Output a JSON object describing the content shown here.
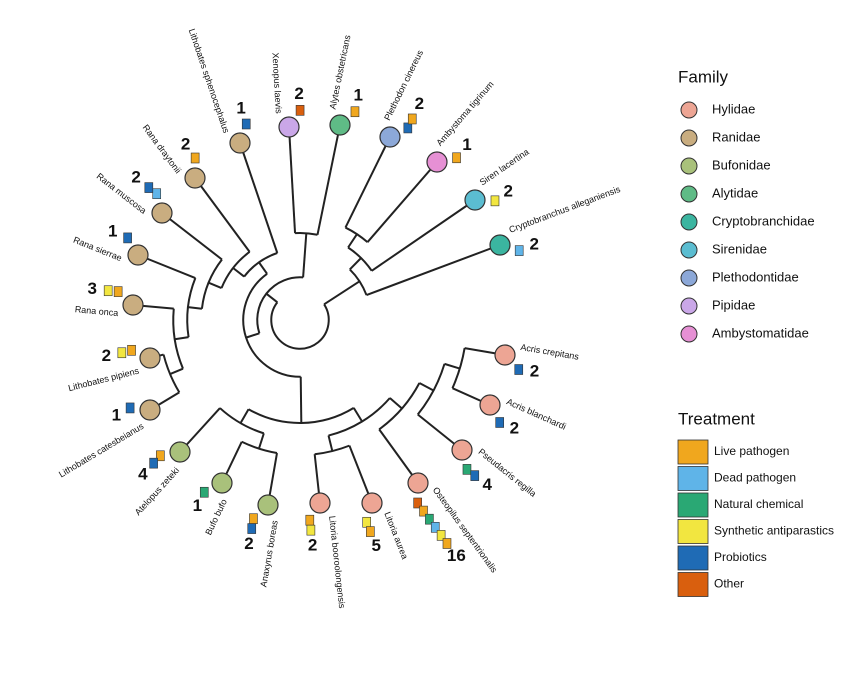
{
  "legend_family": {
    "title": "Family",
    "items": [
      {
        "name": "Hylidae",
        "color": "#eda594"
      },
      {
        "name": "Ranidae",
        "color": "#c9ad80"
      },
      {
        "name": "Bufonidae",
        "color": "#a9c17b"
      },
      {
        "name": "Alytidae",
        "color": "#5fbb86"
      },
      {
        "name": "Cryptobranchidae",
        "color": "#3bb5a0"
      },
      {
        "name": "Sirenidae",
        "color": "#5bbdd1"
      },
      {
        "name": "Plethodontidae",
        "color": "#8ca8d8"
      },
      {
        "name": "Pipidae",
        "color": "#caa7e8"
      },
      {
        "name": "Ambystomatidae",
        "color": "#e690d4"
      }
    ]
  },
  "legend_treatment": {
    "title": "Treatment",
    "items": [
      {
        "name": "Live pathogen",
        "color": "#f0a71e"
      },
      {
        "name": "Dead pathogen",
        "color": "#5fb4e8"
      },
      {
        "name": "Natural chemical",
        "color": "#2aa874"
      },
      {
        "name": "Synthetic antiparastics",
        "color": "#f2e640"
      },
      {
        "name": "Probiotics",
        "color": "#1f6bb5"
      },
      {
        "name": "Other",
        "color": "#d95f0e"
      }
    ]
  },
  "species": [
    {
      "name": "Xenopus laevis",
      "family": "Pipidae",
      "count": 2,
      "treatments": [
        "Other"
      ]
    },
    {
      "name": "Alytes obstetricans",
      "family": "Alytidae",
      "count": 1,
      "treatments": [
        "Live pathogen"
      ]
    },
    {
      "name": "Plethodon cinereus",
      "family": "Plethodontidae",
      "count": 2,
      "treatments": [
        "Probiotics",
        "Live pathogen"
      ]
    },
    {
      "name": "Ambystoma tigrinum",
      "family": "Ambystomatidae",
      "count": 1,
      "treatments": [
        "Live pathogen"
      ]
    },
    {
      "name": "Siren lacertina",
      "family": "Sirenidae",
      "count": 2,
      "treatments": [
        "Synthetic antiparastics"
      ]
    },
    {
      "name": "Cryptobranchus alleganiensis",
      "family": "Cryptobranchidae",
      "count": 2,
      "treatments": [
        "Dead pathogen"
      ]
    },
    {
      "name": "Acris crepitans",
      "family": "Hylidae",
      "count": 2,
      "treatments": [
        "Probiotics"
      ]
    },
    {
      "name": "Acris blanchardi",
      "family": "Hylidae",
      "count": 2,
      "treatments": [
        "Probiotics"
      ]
    },
    {
      "name": "Pseudacris regilla",
      "family": "Hylidae",
      "count": 4,
      "treatments": [
        "Natural chemical",
        "Probiotics"
      ]
    },
    {
      "name": "Osteopilus septentrionalis",
      "family": "Hylidae",
      "count": 16,
      "treatments": [
        "Other",
        "Live pathogen",
        "Natural chemical",
        "Dead pathogen",
        "Synthetic antiparastics",
        "Live pathogen"
      ]
    },
    {
      "name": "Litoria aurea",
      "family": "Hylidae",
      "count": 5,
      "treatments": [
        "Synthetic antiparastics",
        "Live pathogen"
      ]
    },
    {
      "name": "Litoria booroolongensis",
      "family": "Hylidae",
      "count": 2,
      "treatments": [
        "Live pathogen",
        "Synthetic antiparastics"
      ]
    },
    {
      "name": "Anaxyrus boreas",
      "family": "Bufonidae",
      "count": 2,
      "treatments": [
        "Live pathogen",
        "Probiotics"
      ]
    },
    {
      "name": "Bufo bufo",
      "family": "Bufonidae",
      "count": 1,
      "treatments": [
        "Natural chemical"
      ]
    },
    {
      "name": "Atelopus zeteki",
      "family": "Bufonidae",
      "count": 4,
      "treatments": [
        "Live pathogen",
        "Probiotics"
      ]
    },
    {
      "name": "Lithobates catesbeianus",
      "family": "Ranidae",
      "count": 1,
      "treatments": [
        "Probiotics"
      ]
    },
    {
      "name": "Lithobates pipiens",
      "family": "Ranidae",
      "count": 2,
      "treatments": [
        "Live pathogen",
        "Synthetic antiparastics"
      ]
    },
    {
      "name": "Rana onca",
      "family": "Ranidae",
      "count": 3,
      "treatments": [
        "Live pathogen",
        "Synthetic antiparastics"
      ]
    },
    {
      "name": "Rana sierrae",
      "family": "Ranidae",
      "count": 1,
      "treatments": [
        "Probiotics"
      ]
    },
    {
      "name": "Rana muscosa",
      "family": "Ranidae",
      "count": 2,
      "treatments": [
        "Dead pathogen",
        "Probiotics"
      ]
    },
    {
      "name": "Rana draytonii",
      "family": "Ranidae",
      "count": 2,
      "treatments": [
        "Live pathogen"
      ]
    },
    {
      "name": "Lithobates sphenocephalus",
      "family": "Ranidae",
      "count": 1,
      "treatments": [
        "Probiotics"
      ]
    }
  ]
}
